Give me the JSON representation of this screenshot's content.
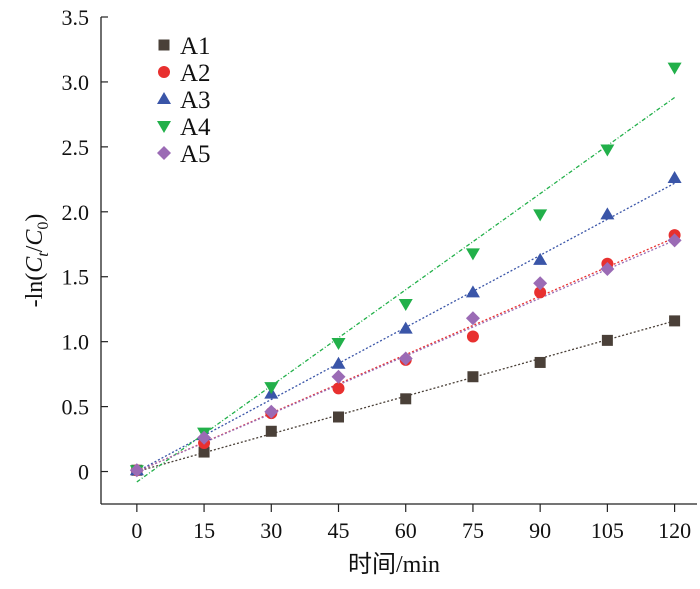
{
  "chart_data": {
    "type": "scatter",
    "title": "",
    "xlabel": "时间/min",
    "ylabel": "-ln(C_t/C_0)",
    "xlim": [
      -8,
      125
    ],
    "ylim": [
      -0.25,
      3.5
    ],
    "x_ticks": [
      0,
      15,
      30,
      45,
      60,
      75,
      90,
      105,
      120
    ],
    "y_ticks": [
      0,
      0.5,
      1.0,
      1.5,
      2.0,
      2.5,
      3.0,
      3.5
    ],
    "y_tick_labels": [
      "0",
      "0.5",
      "1.0",
      "1.5",
      "2.0",
      "2.5",
      "3.0",
      "3.5"
    ],
    "legend_position": "top-left",
    "grid": false,
    "x": [
      0,
      15,
      30,
      45,
      60,
      75,
      90,
      105,
      120
    ],
    "series": [
      {
        "name": "A1",
        "color": "#4a4038",
        "marker": "square",
        "values": [
          0.01,
          0.15,
          0.31,
          0.42,
          0.56,
          0.73,
          0.84,
          1.01,
          1.16
        ],
        "fit": [
          0.0,
          1.16
        ]
      },
      {
        "name": "A2",
        "color": "#e8302f",
        "marker": "circle",
        "values": [
          0.01,
          0.22,
          0.45,
          0.64,
          0.86,
          1.04,
          1.38,
          1.6,
          1.82
        ],
        "fit": [
          0.0,
          1.8
        ]
      },
      {
        "name": "A3",
        "color": "#3a55a8",
        "marker": "triangle-up",
        "values": [
          0.01,
          0.28,
          0.6,
          0.83,
          1.1,
          1.38,
          1.63,
          1.98,
          2.26
        ],
        "fit": [
          0.0,
          2.22
        ]
      },
      {
        "name": "A4",
        "color": "#22b04a",
        "marker": "triangle-down",
        "values": [
          0.01,
          0.3,
          0.65,
          0.99,
          1.29,
          1.68,
          1.98,
          2.48,
          3.11
        ],
        "fit": [
          -0.08,
          2.88
        ]
      },
      {
        "name": "A5",
        "color": "#9b6bb5",
        "marker": "diamond",
        "values": [
          0.01,
          0.26,
          0.46,
          0.73,
          0.87,
          1.18,
          1.45,
          1.56,
          1.78
        ],
        "fit": [
          0.0,
          1.78
        ]
      }
    ]
  }
}
